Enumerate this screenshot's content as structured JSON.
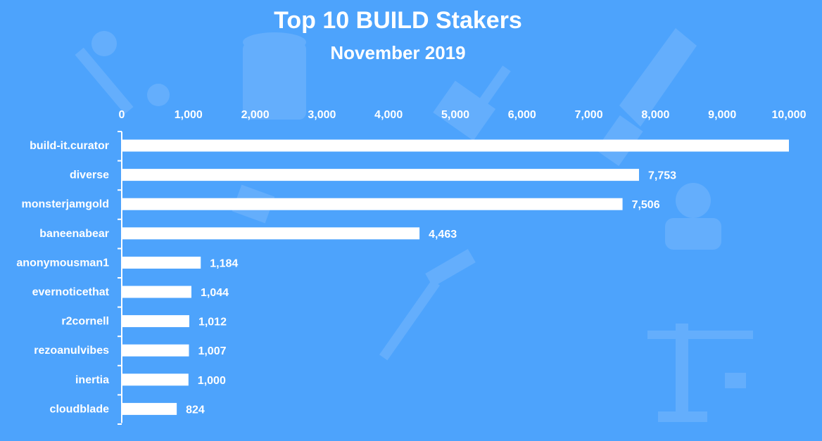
{
  "chart_data": {
    "type": "bar",
    "orientation": "horizontal",
    "title": "Top 10 BUILD Stakers",
    "subtitle": "November 2019",
    "categories": [
      "build-it.curator",
      "diverse",
      "monsterjamgold",
      "baneenabear",
      "anonymousman1",
      "evernoticethat",
      "r2cornell",
      "rezoanulvibes",
      "inertia",
      "cloudblade"
    ],
    "values": [
      10000,
      7753,
      7506,
      4463,
      1184,
      1044,
      1012,
      1007,
      1000,
      824
    ],
    "data_labels": [
      "",
      "7,753",
      "7,506",
      "4,463",
      "1,184",
      "1,044",
      "1,012",
      "1,007",
      "1,000",
      "824"
    ],
    "x_ticks": [
      "0",
      "1,000",
      "2,000",
      "3,000",
      "4,000",
      "5,000",
      "6,000",
      "7,000",
      "8,000",
      "9,000",
      "10,000"
    ],
    "xlim": [
      0,
      10000
    ],
    "axis_position": "top",
    "grid": false,
    "bar_color": "#ffffff",
    "background_color": "#4DA3FC"
  }
}
